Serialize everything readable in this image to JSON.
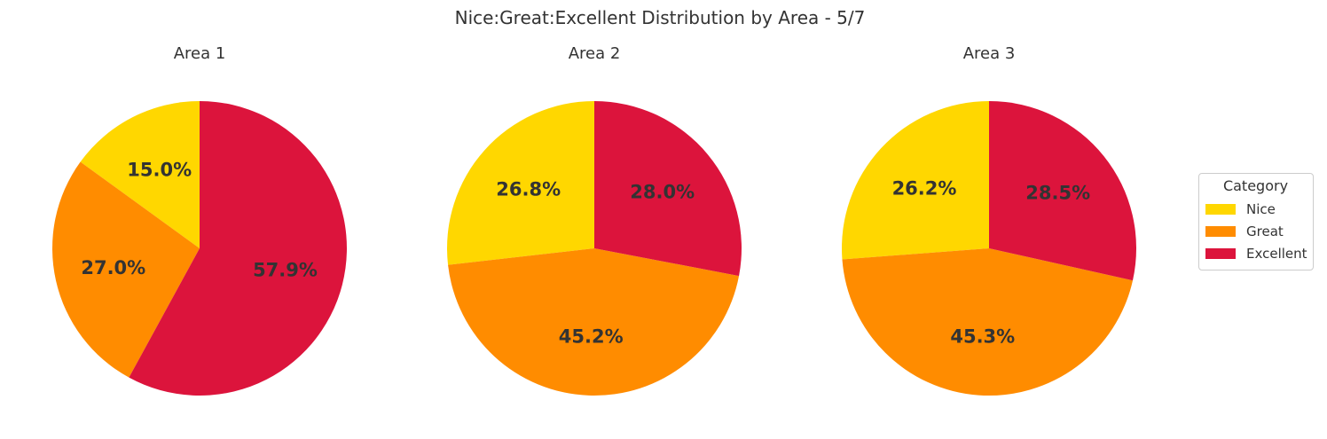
{
  "figure": {
    "title": "Nice:Great:Excellent Distribution by Area - 5/7"
  },
  "legend": {
    "title": "Category",
    "placement": "right",
    "items": [
      {
        "label": "Nice",
        "color": "#FFD700"
      },
      {
        "label": "Great",
        "color": "#FF8C00"
      },
      {
        "label": "Excellent",
        "color": "#DC143C"
      }
    ]
  },
  "chart_data": [
    {
      "type": "pie",
      "title": "Area 1",
      "categories": [
        "Nice",
        "Great",
        "Excellent"
      ],
      "values": [
        15.0,
        27.0,
        57.9
      ],
      "labels": [
        "15.0%",
        "27.0%",
        "57.9%"
      ],
      "colors": [
        "#FFD700",
        "#FF8C00",
        "#DC143C"
      ],
      "start_angle_deg": 90,
      "direction": "counterclockwise"
    },
    {
      "type": "pie",
      "title": "Area 2",
      "categories": [
        "Nice",
        "Great",
        "Excellent"
      ],
      "values": [
        26.8,
        45.2,
        28.0
      ],
      "labels": [
        "26.8%",
        "45.2%",
        "28.0%"
      ],
      "colors": [
        "#FFD700",
        "#FF8C00",
        "#DC143C"
      ],
      "start_angle_deg": 90,
      "direction": "counterclockwise"
    },
    {
      "type": "pie",
      "title": "Area 3",
      "categories": [
        "Nice",
        "Great",
        "Excellent"
      ],
      "values": [
        26.2,
        45.3,
        28.5
      ],
      "labels": [
        "26.2%",
        "45.3%",
        "28.5%"
      ],
      "colors": [
        "#FFD700",
        "#FF8C00",
        "#DC143C"
      ],
      "start_angle_deg": 90,
      "direction": "counterclockwise"
    }
  ]
}
